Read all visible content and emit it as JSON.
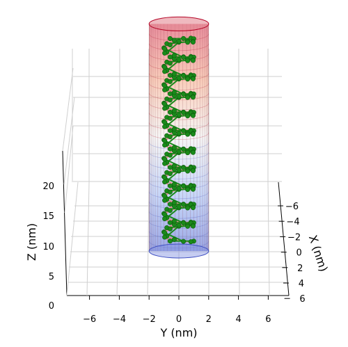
{
  "chart_data": {
    "type": "scatter",
    "title": "",
    "xlabel": "X (nm)",
    "ylabel": "Y (nm)",
    "zlabel": "Z (nm)",
    "x_ticks": [
      -6,
      -4,
      -2,
      0,
      2,
      4,
      6
    ],
    "y_ticks": [
      -6,
      -4,
      -2,
      0,
      2,
      4,
      6
    ],
    "z_ticks": [
      0,
      5,
      10,
      15,
      20
    ],
    "xlim": [
      -6,
      6
    ],
    "ylim": [
      -7,
      7
    ],
    "zlim": [
      0,
      23
    ],
    "grid": true,
    "colors": {
      "point": "#1a8a1a",
      "point_edge": "#0e5e0e",
      "bond": "#e38f8f",
      "cylinder_top": "#b40426",
      "cylinder_bottom": "#3b4cc0",
      "grid": "#cfcfcf"
    },
    "cylinder": {
      "colormap": "coolwarm",
      "radius_nm": 2.0,
      "z_range": [
        0,
        23
      ]
    },
    "series": [
      {
        "helix_radius_nm": 1.0,
        "z_range_nm": [
          1.0,
          21.5
        ],
        "turns": 11,
        "points_per_turn": 10
      }
    ]
  }
}
